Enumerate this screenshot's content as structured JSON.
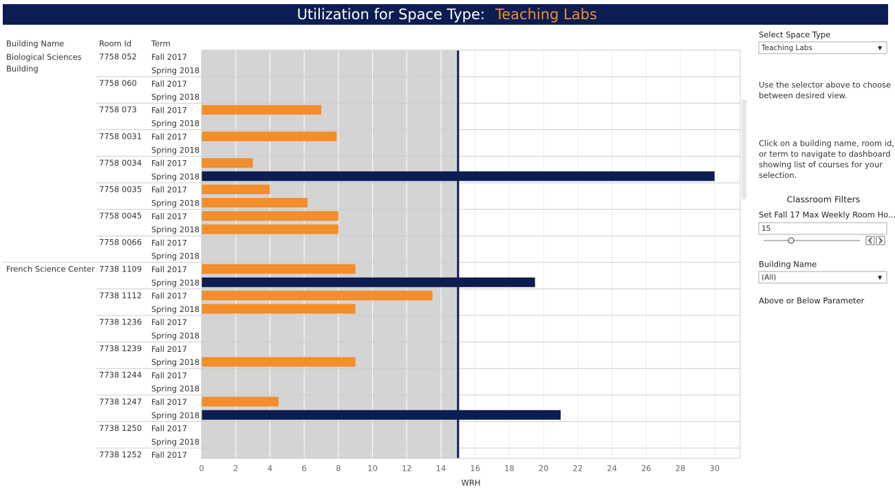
{
  "header": {
    "title": "Utilization for Space Type:",
    "space_type": "Teaching Labs"
  },
  "chart_data": {
    "type": "bar",
    "orientation": "horizontal",
    "columns": [
      "Building Name",
      "Room Id",
      "Term"
    ],
    "x_label": "WRH",
    "xlim": [
      0,
      31.5
    ],
    "xticks": [
      0,
      2,
      4,
      6,
      8,
      10,
      12,
      14,
      16,
      18,
      20,
      22,
      24,
      26,
      28,
      30
    ],
    "colors": {
      "below": "#f28e2b",
      "above": "#0c1d52",
      "shade": "#d4d4d4",
      "line": "#0c1d52"
    },
    "buildings": [
      {
        "name": "Biological Sciences Building",
        "rooms": [
          {
            "id": "7758 052",
            "terms": [
              "Fall 2017",
              "Spring 2018"
            ],
            "values": [
              null,
              null
            ]
          },
          {
            "id": "7758 060",
            "terms": [
              "Fall 2017",
              "Spring 2018"
            ],
            "values": [
              null,
              null
            ]
          },
          {
            "id": "7758 073",
            "terms": [
              "Fall 2017",
              "Spring 2018"
            ],
            "values": [
              7,
              null
            ]
          },
          {
            "id": "7758 0031",
            "terms": [
              "Fall 2017",
              "Spring 2018"
            ],
            "values": [
              7.9,
              null
            ]
          },
          {
            "id": "7758 0034",
            "terms": [
              "Fall 2017",
              "Spring 2018"
            ],
            "values": [
              3,
              30
            ]
          },
          {
            "id": "7758 0035",
            "terms": [
              "Fall 2017",
              "Spring 2018"
            ],
            "values": [
              4,
              6.2
            ]
          },
          {
            "id": "7758 0045",
            "terms": [
              "Fall 2017",
              "Spring 2018"
            ],
            "values": [
              8,
              8
            ]
          },
          {
            "id": "7758 0066",
            "terms": [
              "Fall 2017",
              "Spring 2018"
            ],
            "values": [
              null,
              null
            ]
          }
        ]
      },
      {
        "name": "French Science Center",
        "rooms": [
          {
            "id": "7738 1109",
            "terms": [
              "Fall 2017",
              "Spring 2018"
            ],
            "values": [
              9,
              19.5
            ]
          },
          {
            "id": "7738 1112",
            "terms": [
              "Fall 2017",
              "Spring 2018"
            ],
            "values": [
              13.5,
              9
            ]
          },
          {
            "id": "7738 1236",
            "terms": [
              "Fall 2017",
              "Spring 2018"
            ],
            "values": [
              null,
              null
            ]
          },
          {
            "id": "7738 1239",
            "terms": [
              "Fall 2017",
              "Spring 2018"
            ],
            "values": [
              null,
              9
            ]
          },
          {
            "id": "7738 1244",
            "terms": [
              "Fall 2017",
              "Spring 2018"
            ],
            "values": [
              null,
              null
            ]
          },
          {
            "id": "7738 1247",
            "terms": [
              "Fall 2017",
              "Spring 2018"
            ],
            "values": [
              4.5,
              21
            ]
          },
          {
            "id": "7738 1250",
            "terms": [
              "Fall 2017",
              "Spring 2018"
            ],
            "values": [
              null,
              null
            ]
          },
          {
            "id": "7738 1252",
            "terms": [
              "Fall 2017"
            ],
            "values": [
              null
            ]
          }
        ]
      }
    ]
  },
  "panel": {
    "space_type_label": "Select Space Type",
    "space_type_value": "Teaching Labs",
    "help1": [
      "Use the selector above to choose",
      "between desired view."
    ],
    "help2": [
      "Click on a building name, room id,",
      "or term to navigate to dashboard",
      "showing list of courses for your",
      "selection."
    ],
    "filters_title": "Classroom Filters",
    "max_hours_label": "Set Fall 17 Max Weekly Room Ho...",
    "max_hours_value": 15,
    "building_label": "Building Name",
    "building_value": "(All)",
    "above_below_label": "Above or Below Parameter"
  }
}
